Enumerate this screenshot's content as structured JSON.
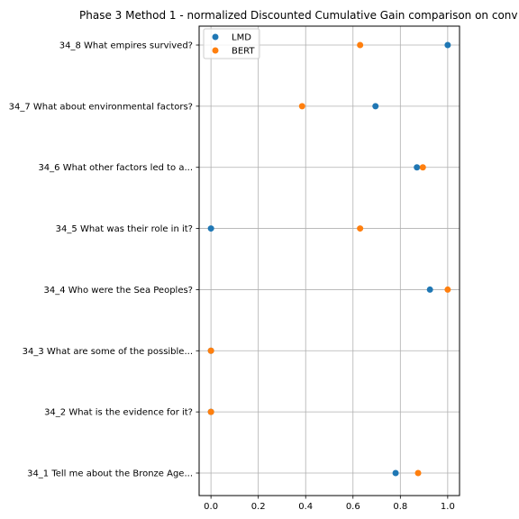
{
  "chart_data": {
    "type": "scatter",
    "title": "Phase 3 Method 1 - normalized Discounted Cumulative Gain comparison on conv",
    "xlabel": "",
    "ylabel": "",
    "xlim": [
      -0.05,
      1.05
    ],
    "xticks": [
      "0.0",
      "0.2",
      "0.4",
      "0.6",
      "0.8",
      "1.0"
    ],
    "grid": true,
    "legend_position": "top-left",
    "categories": [
      "34_1 Tell me about the Bronze Age...",
      "34_2 What is the evidence for it?",
      "34_3 What are some of the possible...",
      "34_4 Who were the Sea Peoples?",
      "34_5 What was their role in it?",
      "34_6 What other factors led to a...",
      "34_7 What about environmental factors?",
      "34_8 What empires survived?"
    ],
    "series": [
      {
        "name": "LMD",
        "color": "#1f77b4",
        "values": [
          0.78,
          0.0,
          0.0,
          0.925,
          0.0,
          0.87,
          0.695,
          1.0
        ]
      },
      {
        "name": "BERT",
        "color": "#ff7f0e",
        "values": [
          0.875,
          0.0,
          0.0,
          1.0,
          0.63,
          0.895,
          0.385,
          0.63
        ]
      }
    ]
  }
}
